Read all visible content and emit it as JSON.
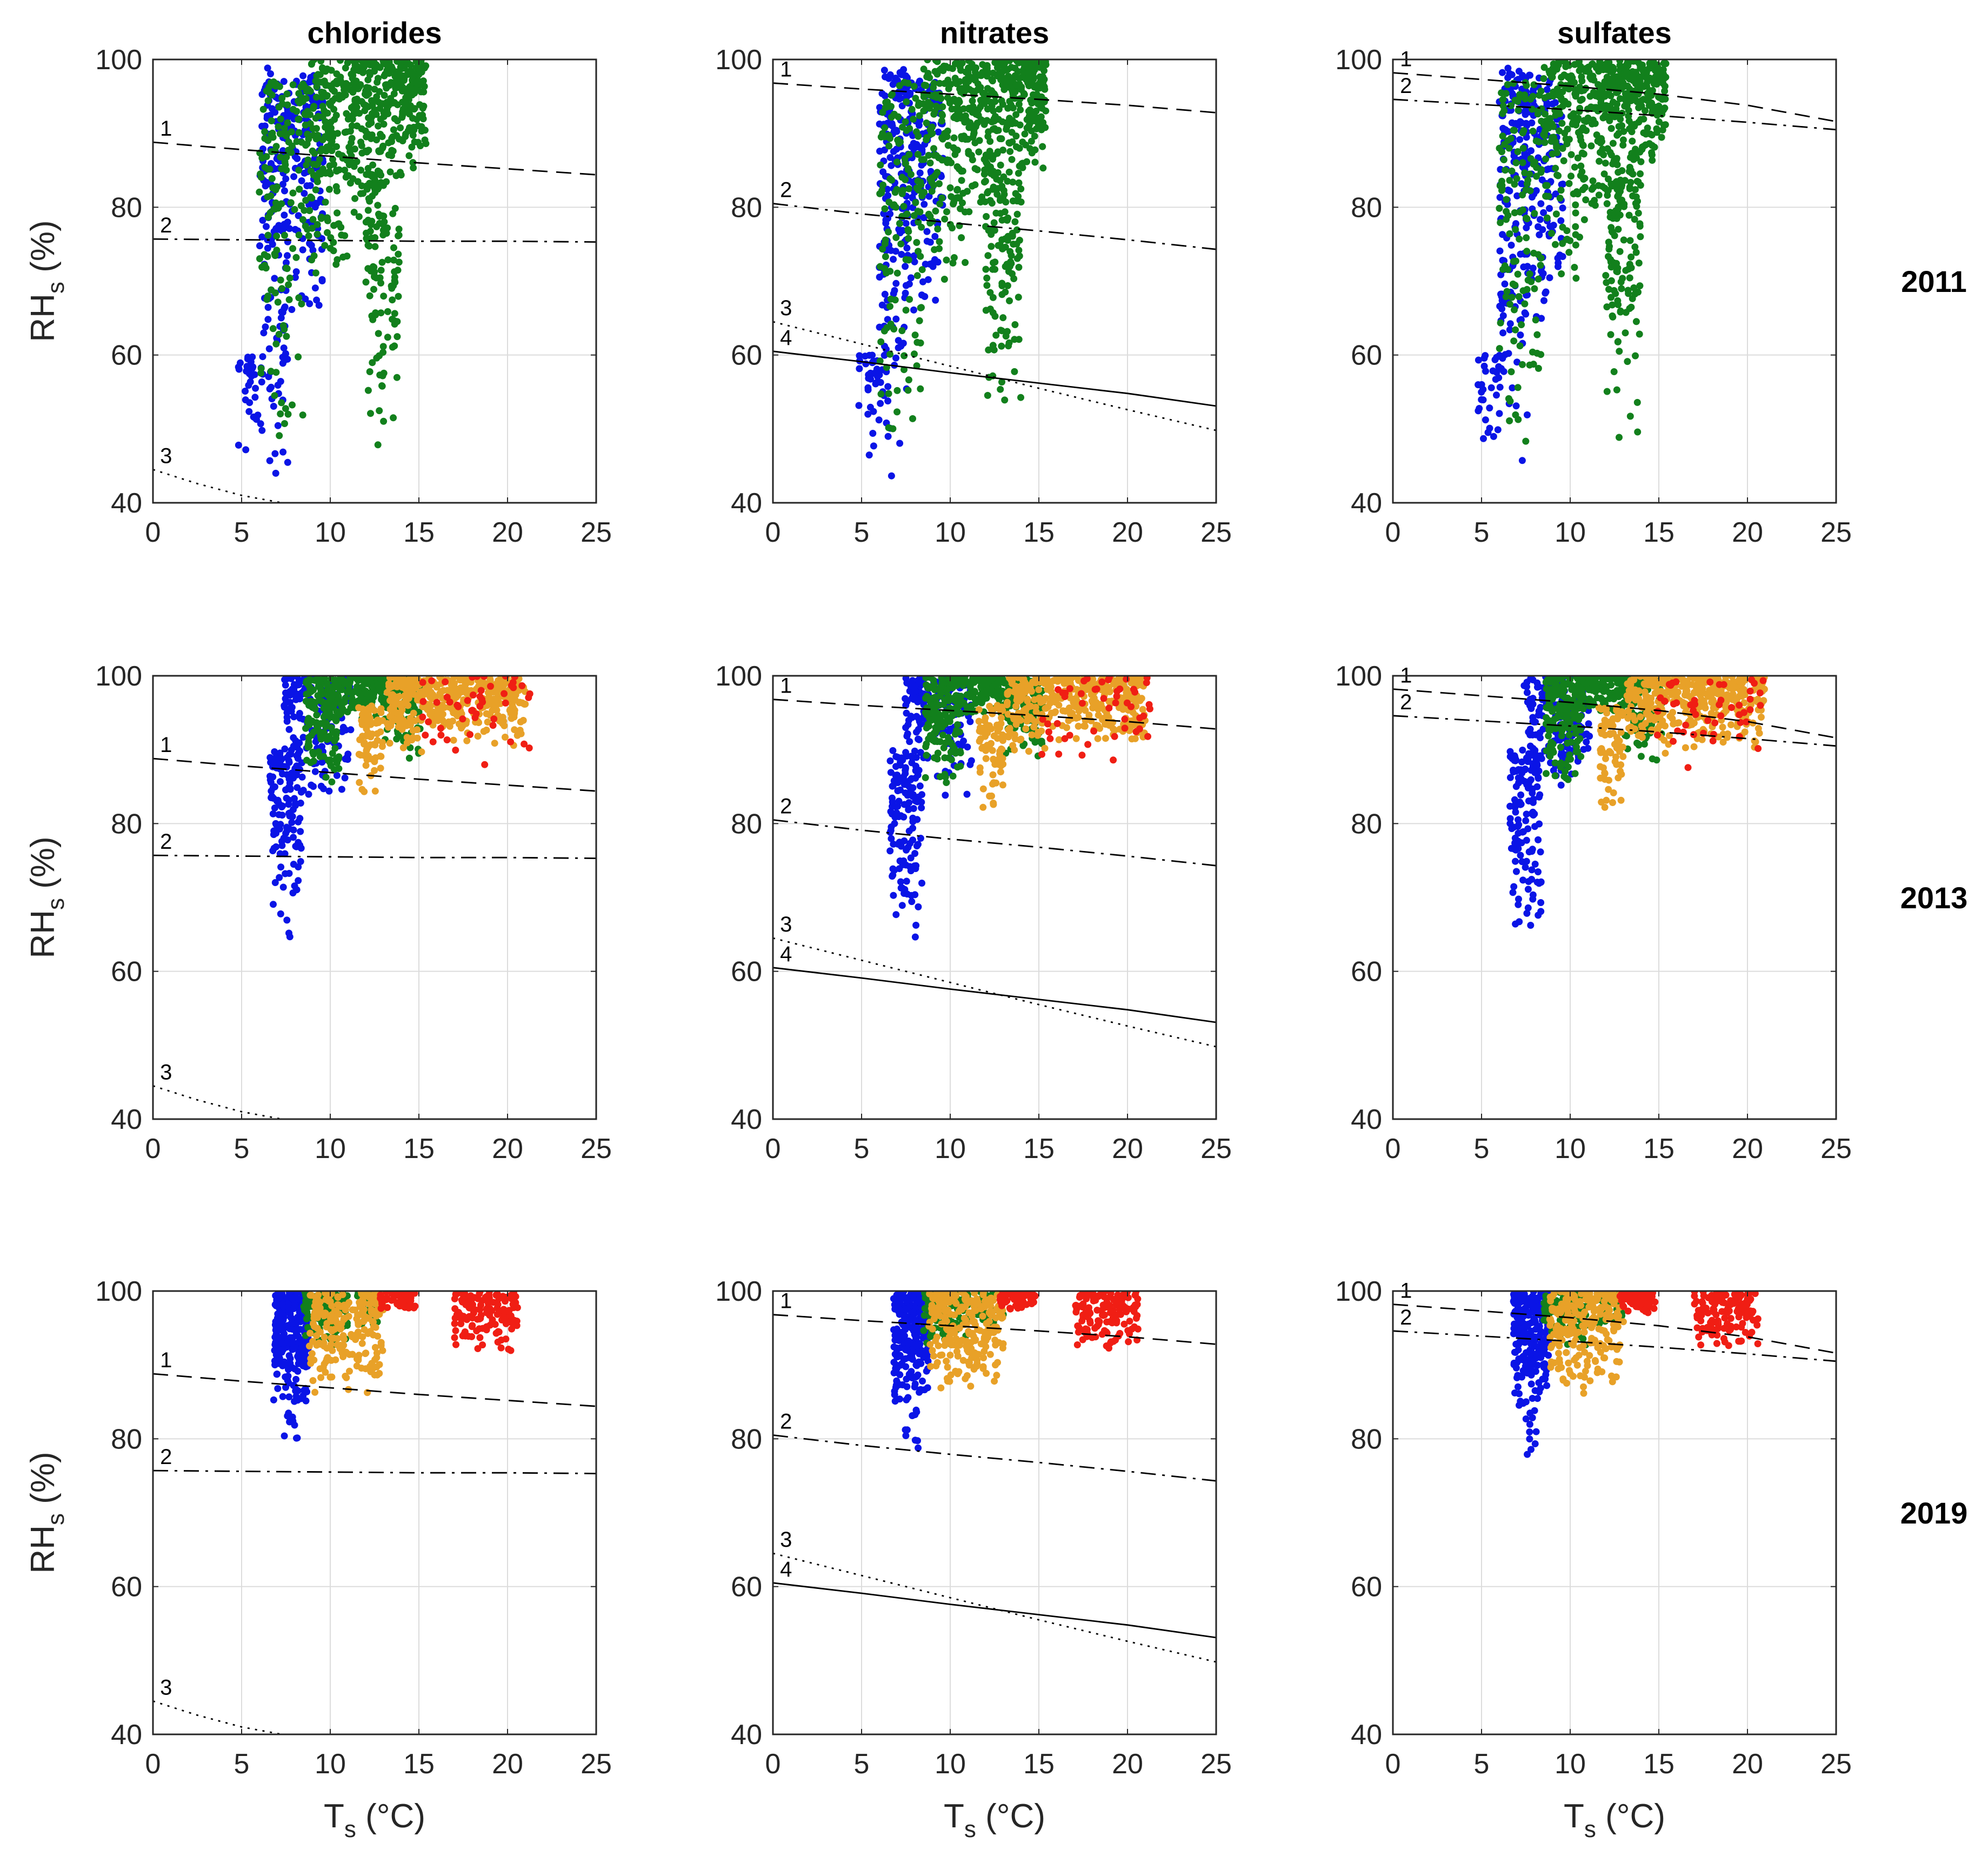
{
  "chart_data": {
    "type": "scatter",
    "columns": [
      "chlorides",
      "nitrates",
      "sulfates"
    ],
    "rows": [
      "2011",
      "2013",
      "2019"
    ],
    "xlabel": {
      "main": "T",
      "sub": "s",
      "unit": " (°C)"
    },
    "ylabel": {
      "main": "RH",
      "sub": "s",
      "unit": " (%)"
    },
    "xlim": [
      0,
      25
    ],
    "ylim": [
      40,
      100
    ],
    "xticks": [
      "0",
      "5",
      "10",
      "15",
      "20",
      "25"
    ],
    "yticks": [
      "40",
      "60",
      "80",
      "100"
    ],
    "grid": true,
    "point_colors": {
      "blue": "#0a14e6",
      "green": "#12801c",
      "orange": "#e8a128",
      "red": "#f01e14"
    },
    "curves": {
      "chlorides": [
        {
          "label": "1",
          "style": "dashed",
          "x": [
            0,
            5,
            10,
            15,
            20,
            25
          ],
          "y": [
            88.8,
            87.8,
            86.9,
            86.0,
            85.2,
            84.4
          ]
        },
        {
          "label": "2",
          "style": "dashdot",
          "x": [
            0,
            5,
            10,
            15,
            20,
            25
          ],
          "y": [
            75.7,
            75.6,
            75.5,
            75.4,
            75.4,
            75.3
          ]
        },
        {
          "label": "3",
          "style": "dotted",
          "x": [
            0,
            2.5,
            5,
            7.5
          ],
          "y": [
            44.5,
            42.6,
            41.0,
            39.9
          ]
        }
      ],
      "nitrates": [
        {
          "label": "1",
          "style": "dashed",
          "x": [
            0,
            5,
            10,
            15,
            20,
            25
          ],
          "y": [
            96.8,
            96.0,
            95.3,
            94.6,
            93.8,
            92.8
          ]
        },
        {
          "label": "2",
          "style": "dashdot",
          "x": [
            0,
            5,
            10,
            15,
            20,
            25
          ],
          "y": [
            80.5,
            79.1,
            77.9,
            76.8,
            75.6,
            74.3
          ]
        },
        {
          "label": "3",
          "style": "dotted",
          "x": [
            0,
            5,
            10,
            15,
            20,
            25
          ],
          "y": [
            64.5,
            61.5,
            58.5,
            55.5,
            52.6,
            49.8
          ]
        },
        {
          "label": "4",
          "style": "solid",
          "x": [
            0,
            5,
            10,
            15,
            20,
            25
          ],
          "y": [
            60.5,
            59.1,
            57.6,
            56.2,
            54.8,
            53.1
          ]
        }
      ],
      "sulfates": [
        {
          "label": "1",
          "style": "dashed",
          "x": [
            0,
            5,
            10,
            15,
            20,
            25
          ],
          "y": [
            98.2,
            97.3,
            96.4,
            95.3,
            93.8,
            91.6
          ]
        },
        {
          "label": "2",
          "style": "dashdot",
          "x": [
            0,
            5,
            10,
            15,
            20,
            25
          ],
          "y": [
            94.6,
            93.9,
            93.2,
            92.4,
            91.5,
            90.5
          ]
        }
      ]
    },
    "scatter": {
      "2011": [
        {
          "color": "blue",
          "xlo": 4.8,
          "xhi": 6.2,
          "ylo": 46,
          "yhi": 60,
          "n": 35
        },
        {
          "color": "blue",
          "xlo": 6.0,
          "xhi": 7.6,
          "ylo": 42,
          "yhi": 99,
          "n": 150
        },
        {
          "color": "blue",
          "xlo": 7.4,
          "xhi": 9.6,
          "ylo": 62,
          "yhi": 98,
          "n": 140
        },
        {
          "color": "green",
          "xlo": 6.0,
          "xhi": 8.5,
          "ylo": 45,
          "yhi": 97,
          "n": 140
        },
        {
          "color": "green",
          "xlo": 8.5,
          "xhi": 11.0,
          "ylo": 70,
          "yhi": 100,
          "n": 180
        },
        {
          "color": "green",
          "xlo": 11.0,
          "xhi": 13.0,
          "ylo": 76,
          "yhi": 100,
          "n": 160
        },
        {
          "color": "green",
          "xlo": 12.0,
          "xhi": 14.0,
          "ylo": 47,
          "yhi": 85,
          "n": 120
        },
        {
          "color": "green",
          "xlo": 13.0,
          "xhi": 15.4,
          "ylo": 84,
          "yhi": 100,
          "n": 180
        }
      ],
      "2013": [
        {
          "color": "blue",
          "xlo": 6.6,
          "xhi": 8.4,
          "ylo": 63,
          "yhi": 90,
          "n": 130
        },
        {
          "color": "blue",
          "xlo": 7.4,
          "xhi": 11.2,
          "ylo": 83,
          "yhi": 100,
          "n": 160
        },
        {
          "color": "green",
          "xlo": 8.6,
          "xhi": 10.6,
          "ylo": 85,
          "yhi": 100,
          "n": 150
        },
        {
          "color": "green",
          "xlo": 10.4,
          "xhi": 13.2,
          "ylo": 94,
          "yhi": 100,
          "n": 120
        },
        {
          "color": "green",
          "xlo": 13.0,
          "xhi": 15.2,
          "ylo": 88,
          "yhi": 100,
          "n": 90
        },
        {
          "color": "orange",
          "xlo": 11.6,
          "xhi": 13.0,
          "ylo": 81,
          "yhi": 96,
          "n": 70
        },
        {
          "color": "orange",
          "xlo": 13.2,
          "xhi": 15.6,
          "ylo": 89,
          "yhi": 100,
          "n": 120
        },
        {
          "color": "orange",
          "xlo": 15.6,
          "xhi": 21.0,
          "ylo": 90,
          "yhi": 100,
          "n": 260
        },
        {
          "color": "red",
          "xlo": 14.8,
          "xhi": 21.3,
          "ylo": 86,
          "yhi": 100,
          "n": 50
        }
      ],
      "2019": [
        {
          "color": "blue",
          "xlo": 6.8,
          "xhi": 8.8,
          "ylo": 83,
          "yhi": 100,
          "n": 250
        },
        {
          "color": "blue",
          "xlo": 7.4,
          "xhi": 8.2,
          "ylo": 75,
          "yhi": 84,
          "n": 10
        },
        {
          "color": "green",
          "xlo": 8.5,
          "xhi": 11.0,
          "ylo": 92,
          "yhi": 100,
          "n": 110
        },
        {
          "color": "green",
          "xlo": 11.5,
          "xhi": 13.0,
          "ylo": 95,
          "yhi": 100,
          "n": 40
        },
        {
          "color": "orange",
          "xlo": 8.8,
          "xhi": 13.0,
          "ylo": 86,
          "yhi": 100,
          "n": 230
        },
        {
          "color": "red",
          "xlo": 12.8,
          "xhi": 14.8,
          "ylo": 97,
          "yhi": 100,
          "n": 60
        },
        {
          "color": "red",
          "xlo": 17.0,
          "xhi": 20.6,
          "ylo": 91,
          "yhi": 100,
          "n": 140
        }
      ]
    }
  }
}
